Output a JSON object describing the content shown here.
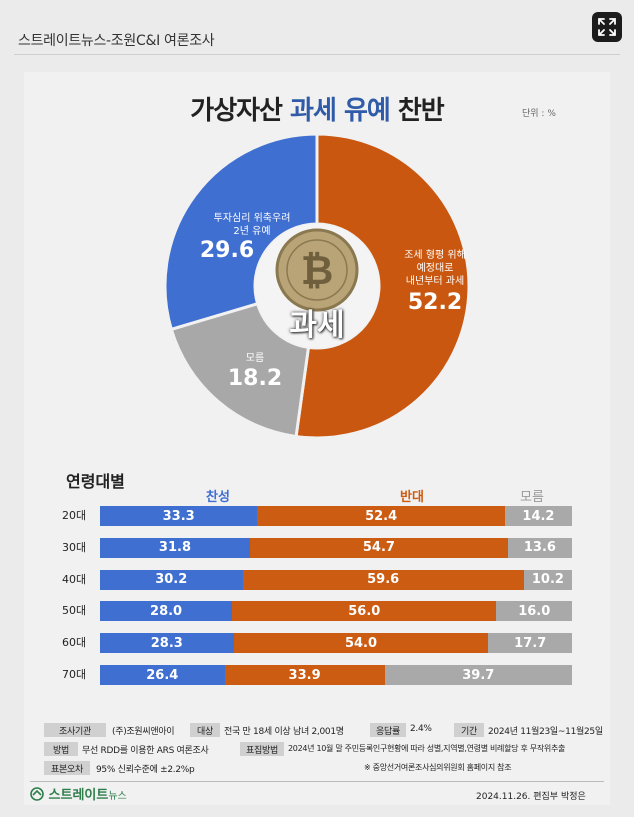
{
  "header": {
    "caption": "스트레이트뉴스-조원C&I 여론조사"
  },
  "chart_title": {
    "part1": "가상자산",
    "part2": "과세 유예",
    "part3": "찬반"
  },
  "unit_label": "단위 : %",
  "center_word": "과세",
  "chart_data": [
    {
      "type": "pie",
      "title": "가상자산 과세 유예 찬반",
      "slices": [
        {
          "label": "조세 형평 위해 예정대로 내년부터 과세",
          "value": 52.2,
          "color": "#c9570f"
        },
        {
          "label": "모름",
          "value": 18.2,
          "color": "#a8a8a8"
        },
        {
          "label": "투자심리 위축우려 2년 유예",
          "value": 29.6,
          "color": "#3f6fd1"
        }
      ]
    },
    {
      "type": "bar",
      "stacked": true,
      "orientation": "horizontal",
      "title": "연령대별",
      "categories": [
        "20대",
        "30대",
        "40대",
        "50대",
        "60대",
        "70대"
      ],
      "series": [
        {
          "name": "찬성",
          "color": "#3f6fd1",
          "values": [
            33.3,
            31.8,
            30.2,
            28.0,
            28.3,
            26.4
          ]
        },
        {
          "name": "반대",
          "color": "#cc5c12",
          "values": [
            52.4,
            54.7,
            59.6,
            56.0,
            54.0,
            33.9
          ]
        },
        {
          "name": "모름",
          "color": "#a9a9a9",
          "values": [
            14.2,
            13.6,
            10.2,
            16.0,
            17.7,
            39.7
          ]
        }
      ]
    }
  ],
  "slice_labels": {
    "yes_line1": "투자심리 위축우려",
    "yes_line2": "2년 유예",
    "yes_value": "29.6",
    "no_line1": "조세 형평 위해",
    "no_line2": "예정대로",
    "no_line3": "내년부터 과세",
    "no_value": "52.2",
    "dk_line1": "모름",
    "dk_value": "18.2"
  },
  "bar_display": [
    [
      "33.3",
      "52.4",
      "14.2"
    ],
    [
      "31.8",
      "54.7",
      "13.6"
    ],
    [
      "30.2",
      "59.6",
      "10.2"
    ],
    [
      "28.0",
      "56.0",
      "16.0"
    ],
    [
      "28.3",
      "54.0",
      "17.7"
    ],
    [
      "26.4",
      "33.9",
      "39.7"
    ]
  ],
  "survey_info": {
    "agency_tag": "조사기관",
    "agency": "(주)조원씨앤아이",
    "target_tag": "대상",
    "target": "전국 만 18세 이상 남녀 2,001명",
    "response_tag": "응답률",
    "response": "2.4%",
    "period_tag": "기간",
    "period": "2024년 11월23일~11월25일",
    "method_tag": "방법",
    "method": "무선 RDD를 이용한 ARS 여론조사",
    "sampling_tag": "표집방법",
    "sampling": "2024년 10월 말 주민등록인구현황에 따라 성별,지역별,연령별 비례할당 후 무작위추출",
    "error_tag": "표본오차",
    "error": "95% 신뢰수준에 ±2.2%p",
    "note": "※ 중앙선거여론조사심의위원회 홈페이지 참조"
  },
  "footer": {
    "brand_main": "스트레이트",
    "brand_sub": "뉴스",
    "date": "2024.11.26. 편집부 박정은"
  },
  "icons": {
    "expand": "expand-icon",
    "coin": "bitcoin-coin-icon",
    "brand": "brand-logo-icon"
  }
}
